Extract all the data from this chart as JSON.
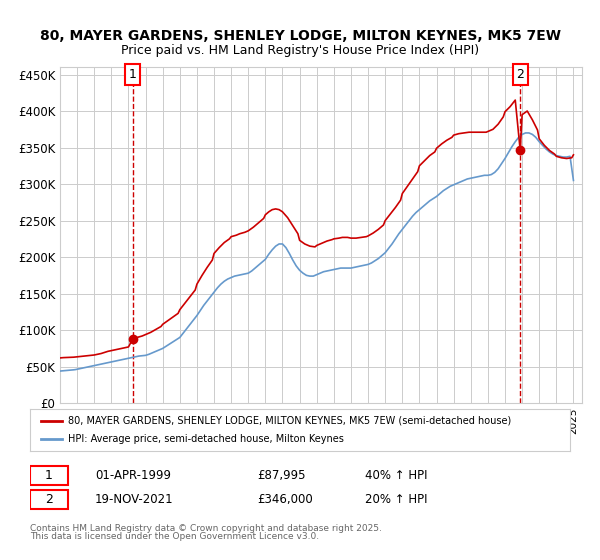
{
  "title": "80, MAYER GARDENS, SHENLEY LODGE, MILTON KEYNES, MK5 7EW",
  "subtitle": "Price paid vs. HM Land Registry's House Price Index (HPI)",
  "xlabel": "",
  "ylabel": "",
  "ylim": [
    0,
    460000
  ],
  "xlim_start": 1995.0,
  "xlim_end": 2025.5,
  "yticks": [
    0,
    50000,
    100000,
    150000,
    200000,
    250000,
    300000,
    350000,
    400000,
    450000
  ],
  "ytick_labels": [
    "£0",
    "£50K",
    "£100K",
    "£150K",
    "£200K",
    "£250K",
    "£300K",
    "£350K",
    "£400K",
    "£450K"
  ],
  "xticks": [
    1995,
    1996,
    1997,
    1998,
    1999,
    2000,
    2001,
    2002,
    2003,
    2004,
    2005,
    2006,
    2007,
    2008,
    2009,
    2010,
    2011,
    2012,
    2013,
    2014,
    2015,
    2016,
    2017,
    2018,
    2019,
    2020,
    2021,
    2022,
    2023,
    2024,
    2025
  ],
  "bg_color": "#ffffff",
  "grid_color": "#cccccc",
  "sale1_x": 1999.25,
  "sale1_y": 87995,
  "sale2_x": 2021.89,
  "sale2_y": 346000,
  "sale_color": "#cc0000",
  "hpi_color": "#6699cc",
  "legend_sale_label": "80, MAYER GARDENS, SHENLEY LODGE, MILTON KEYNES, MK5 7EW (semi-detached house)",
  "legend_hpi_label": "HPI: Average price, semi-detached house, Milton Keynes",
  "annotation1_label": "1",
  "annotation2_label": "2",
  "footer1": "1    01-APR-1999         £87,995         40% ↑ HPI",
  "footer2": "2    19-NOV-2021         £346,000         20% ↑ HPI",
  "footer3": "Contains HM Land Registry data © Crown copyright and database right 2025.",
  "footer4": "This data is licensed under the Open Government Licence v3.0.",
  "hpi_x": [
    1995.0,
    1995.1,
    1995.2,
    1995.3,
    1995.4,
    1995.5,
    1995.6,
    1995.7,
    1995.8,
    1995.9,
    1996.0,
    1996.1,
    1996.2,
    1996.3,
    1996.4,
    1996.5,
    1996.6,
    1996.7,
    1996.8,
    1996.9,
    1997.0,
    1997.2,
    1997.4,
    1997.6,
    1997.8,
    1998.0,
    1998.2,
    1998.4,
    1998.6,
    1998.8,
    1999.0,
    1999.2,
    1999.4,
    1999.6,
    1999.8,
    2000.0,
    2000.2,
    2000.4,
    2000.6,
    2000.8,
    2001.0,
    2001.2,
    2001.4,
    2001.6,
    2001.8,
    2002.0,
    2002.2,
    2002.4,
    2002.6,
    2002.8,
    2003.0,
    2003.2,
    2003.4,
    2003.6,
    2003.8,
    2004.0,
    2004.2,
    2004.4,
    2004.6,
    2004.8,
    2005.0,
    2005.2,
    2005.4,
    2005.6,
    2005.8,
    2006.0,
    2006.2,
    2006.4,
    2006.6,
    2006.8,
    2007.0,
    2007.2,
    2007.4,
    2007.6,
    2007.8,
    2008.0,
    2008.2,
    2008.4,
    2008.6,
    2008.8,
    2009.0,
    2009.2,
    2009.4,
    2009.6,
    2009.8,
    2010.0,
    2010.2,
    2010.4,
    2010.6,
    2010.8,
    2011.0,
    2011.2,
    2011.4,
    2011.6,
    2011.8,
    2012.0,
    2012.2,
    2012.4,
    2012.6,
    2012.8,
    2013.0,
    2013.2,
    2013.4,
    2013.6,
    2013.8,
    2014.0,
    2014.2,
    2014.4,
    2014.6,
    2014.8,
    2015.0,
    2015.2,
    2015.4,
    2015.6,
    2015.8,
    2016.0,
    2016.2,
    2016.4,
    2016.6,
    2016.8,
    2017.0,
    2017.2,
    2017.4,
    2017.6,
    2017.8,
    2018.0,
    2018.2,
    2018.4,
    2018.6,
    2018.8,
    2019.0,
    2019.2,
    2019.4,
    2019.6,
    2019.8,
    2020.0,
    2020.2,
    2020.4,
    2020.6,
    2020.8,
    2021.0,
    2021.2,
    2021.4,
    2021.6,
    2021.8,
    2022.0,
    2022.2,
    2022.4,
    2022.6,
    2022.8,
    2023.0,
    2023.2,
    2023.4,
    2023.6,
    2023.8,
    2024.0,
    2024.2,
    2024.4,
    2024.6,
    2024.8,
    2025.0
  ],
  "hpi_y": [
    44000,
    44200,
    44400,
    44600,
    44800,
    45000,
    45200,
    45500,
    45700,
    46000,
    46500,
    47000,
    47500,
    48000,
    48500,
    49000,
    49500,
    50000,
    50500,
    51000,
    51500,
    52500,
    53500,
    54500,
    55500,
    56500,
    57500,
    58500,
    59500,
    60500,
    61500,
    62500,
    63500,
    64500,
    65000,
    65500,
    67000,
    69000,
    71000,
    73000,
    75000,
    78000,
    81000,
    84000,
    87000,
    90000,
    96000,
    102000,
    108000,
    114000,
    120000,
    127000,
    134000,
    140000,
    146000,
    152000,
    158000,
    163000,
    167000,
    170000,
    172000,
    174000,
    175000,
    176000,
    177000,
    178000,
    181000,
    185000,
    189000,
    193000,
    197000,
    204000,
    210000,
    215000,
    218000,
    218000,
    213000,
    205000,
    196000,
    188000,
    182000,
    178000,
    175000,
    174000,
    174000,
    176000,
    178000,
    180000,
    181000,
    182000,
    183000,
    184000,
    185000,
    185000,
    185000,
    185000,
    186000,
    187000,
    188000,
    189000,
    190000,
    192000,
    195000,
    198000,
    202000,
    206000,
    212000,
    218000,
    225000,
    232000,
    238000,
    244000,
    250000,
    256000,
    261000,
    265000,
    269000,
    273000,
    277000,
    280000,
    283000,
    287000,
    291000,
    294000,
    297000,
    299000,
    301000,
    303000,
    305000,
    307000,
    308000,
    309000,
    310000,
    311000,
    312000,
    312000,
    313000,
    316000,
    321000,
    328000,
    335000,
    343000,
    351000,
    358000,
    364000,
    368000,
    370000,
    370000,
    368000,
    364000,
    358000,
    353000,
    348000,
    344000,
    341000,
    339000,
    338000,
    337000,
    337000,
    338000,
    305000
  ],
  "price_x": [
    1995.0,
    1995.1,
    1995.2,
    1995.4,
    1995.6,
    1995.8,
    1996.0,
    1996.2,
    1996.4,
    1996.6,
    1996.8,
    1997.0,
    1997.2,
    1997.4,
    1997.6,
    1997.8,
    1998.0,
    1998.2,
    1998.4,
    1998.6,
    1998.8,
    1999.0,
    1999.25,
    1999.5,
    1999.8,
    2000.0,
    2000.3,
    2000.6,
    2000.9,
    2001.0,
    2001.3,
    2001.6,
    2001.9,
    2002.0,
    2002.3,
    2002.6,
    2002.9,
    2003.0,
    2003.3,
    2003.6,
    2003.9,
    2004.0,
    2004.3,
    2004.6,
    2004.9,
    2005.0,
    2005.3,
    2005.5,
    2005.8,
    2006.0,
    2006.3,
    2006.6,
    2006.9,
    2007.0,
    2007.2,
    2007.4,
    2007.6,
    2007.8,
    2008.0,
    2008.3,
    2008.6,
    2008.9,
    2009.0,
    2009.3,
    2009.6,
    2009.9,
    2010.0,
    2010.3,
    2010.6,
    2010.9,
    2011.0,
    2011.3,
    2011.5,
    2011.8,
    2012.0,
    2012.3,
    2012.6,
    2012.9,
    2013.0,
    2013.3,
    2013.6,
    2013.9,
    2014.0,
    2014.3,
    2014.6,
    2014.9,
    2015.0,
    2015.3,
    2015.6,
    2015.9,
    2016.0,
    2016.3,
    2016.6,
    2016.9,
    2017.0,
    2017.3,
    2017.6,
    2017.9,
    2018.0,
    2018.3,
    2018.6,
    2018.9,
    2019.0,
    2019.3,
    2019.6,
    2019.9,
    2020.0,
    2020.3,
    2020.6,
    2020.9,
    2021.0,
    2021.3,
    2021.6,
    2021.89,
    2022.0,
    2022.3,
    2022.6,
    2022.9,
    2023.0,
    2023.3,
    2023.6,
    2023.9,
    2024.0,
    2024.3,
    2024.6,
    2024.9,
    2025.0
  ],
  "price_y": [
    62000,
    62200,
    62400,
    62600,
    62800,
    63000,
    63500,
    64000,
    64500,
    65000,
    65500,
    66000,
    67000,
    68000,
    69500,
    71000,
    72000,
    73000,
    74000,
    75000,
    76000,
    77000,
    87995,
    90000,
    92000,
    94000,
    97000,
    101000,
    105000,
    108000,
    113000,
    118000,
    123000,
    128000,
    137000,
    146000,
    155000,
    163000,
    175000,
    186000,
    196000,
    205000,
    213000,
    220000,
    225000,
    228000,
    230000,
    232000,
    234000,
    236000,
    241000,
    247000,
    253000,
    258000,
    262000,
    265000,
    266000,
    265000,
    262000,
    254000,
    243000,
    232000,
    223000,
    218000,
    215000,
    214000,
    216000,
    219000,
    222000,
    224000,
    225000,
    226000,
    227000,
    227000,
    226000,
    226000,
    227000,
    228000,
    229000,
    233000,
    238000,
    244000,
    250000,
    259000,
    268000,
    278000,
    287000,
    297000,
    307000,
    317000,
    325000,
    332000,
    339000,
    344000,
    349000,
    355000,
    360000,
    364000,
    367000,
    369000,
    370000,
    371000,
    371000,
    371000,
    371000,
    371000,
    372000,
    375000,
    382000,
    392000,
    399000,
    406000,
    415000,
    346000,
    395000,
    400000,
    388000,
    374000,
    362000,
    353000,
    346000,
    341000,
    338000,
    336000,
    335000,
    336000,
    340000
  ]
}
